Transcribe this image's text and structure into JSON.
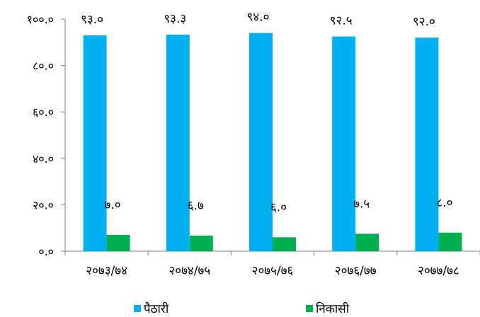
{
  "chart_data": {
    "type": "bar",
    "categories": [
      "२०७३/७४",
      "२०७४/७५",
      "२०७५/७६",
      "२०७६/७७",
      "२०७७/७८"
    ],
    "series": [
      {
        "name": "पैठारी",
        "color": "#00B0F0",
        "values": [
          93.0,
          93.3,
          94.0,
          92.5,
          92.0
        ],
        "labels": [
          "९३.०",
          "९३.३",
          "९४.०",
          "९२.५",
          "९२.०"
        ]
      },
      {
        "name": "निकासी",
        "color": "#00B050",
        "values": [
          7.0,
          6.7,
          6.0,
          7.5,
          8.0
        ],
        "labels": [
          "७.०",
          "६.७",
          "६.०",
          "७.५",
          "८.०"
        ]
      }
    ],
    "ylim": [
      0,
      100
    ],
    "yticks": [
      {
        "value": 0,
        "label": "०.०"
      },
      {
        "value": 20,
        "label": "२०.०"
      },
      {
        "value": 40,
        "label": "४०.०"
      },
      {
        "value": 60,
        "label": "६०.०"
      },
      {
        "value": 80,
        "label": "८०.०"
      },
      {
        "value": 100,
        "label": "१००.०"
      }
    ],
    "grid": false,
    "legend_position": "bottom",
    "axis_color": "#808080"
  }
}
